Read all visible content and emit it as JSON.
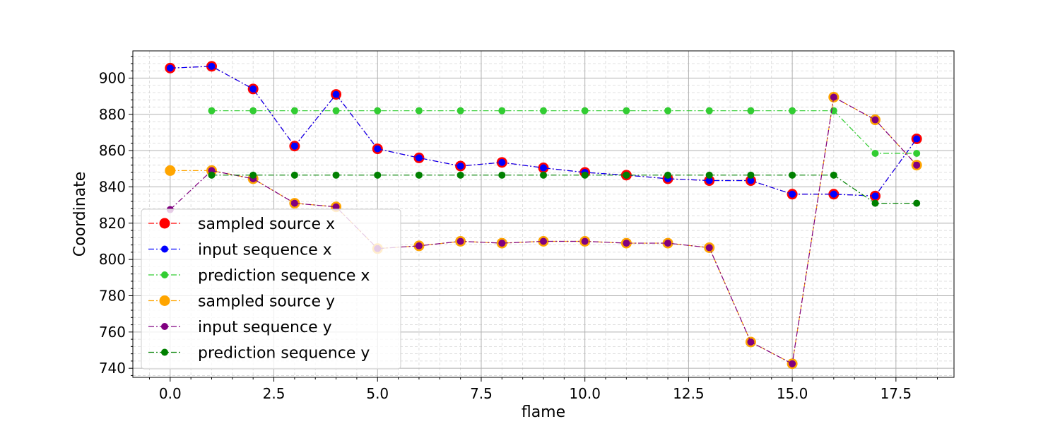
{
  "chart_data": {
    "type": "line",
    "title": "",
    "xlabel": "flame",
    "ylabel": "Coordinate",
    "xlim": [
      -0.9,
      18.9
    ],
    "ylim": [
      735,
      915
    ],
    "xticks": [
      0.0,
      2.5,
      5.0,
      7.5,
      10.0,
      12.5,
      15.0,
      17.5
    ],
    "xtick_labels": [
      "0.0",
      "2.5",
      "5.0",
      "7.5",
      "10.0",
      "12.5",
      "15.0",
      "17.5"
    ],
    "yticks": [
      740,
      760,
      780,
      800,
      820,
      840,
      860,
      880,
      900
    ],
    "ytick_labels": [
      "740",
      "760",
      "780",
      "800",
      "820",
      "840",
      "860",
      "880",
      "900"
    ],
    "grid": true,
    "minor_grid": true,
    "legend_position": "lower-left",
    "series": [
      {
        "name": "sampled source x",
        "color": "#ff0000",
        "marker_size": "large",
        "x": [
          0,
          1,
          2,
          3,
          4,
          5,
          6,
          7,
          8,
          9,
          10,
          11,
          12,
          13,
          14,
          15,
          16,
          17,
          18
        ],
        "y": [
          905.5,
          906.5,
          894,
          862.5,
          891,
          861,
          856,
          851.5,
          853.5,
          850.5,
          848,
          846.5,
          844.5,
          843.5,
          843.5,
          836,
          836,
          835,
          866.5
        ]
      },
      {
        "name": "input sequence x",
        "color": "#0000ff",
        "marker_size": "small",
        "x": [
          0,
          1,
          2,
          3,
          4,
          5,
          6,
          7,
          8,
          9,
          10,
          11,
          12,
          13,
          14,
          15,
          16,
          17,
          18
        ],
        "y": [
          905.5,
          906.5,
          894,
          862.5,
          891,
          861,
          856,
          851.5,
          853.5,
          850.5,
          848,
          846.5,
          844.5,
          843.5,
          843.5,
          836,
          836,
          835,
          866.5
        ]
      },
      {
        "name": "prediction sequence x",
        "color": "#32cd32",
        "marker_size": "small",
        "x": [
          1,
          2,
          3,
          4,
          5,
          6,
          7,
          8,
          9,
          10,
          11,
          12,
          13,
          14,
          15,
          16,
          17,
          18
        ],
        "y": [
          882,
          882,
          882,
          882,
          882,
          882,
          882,
          882,
          882,
          882,
          882,
          882,
          882,
          882,
          882,
          882,
          858.5,
          858.5
        ]
      },
      {
        "name": "sampled source y",
        "color": "#ffa500",
        "marker_size": "large",
        "x": [
          0,
          1,
          2,
          3,
          4,
          5,
          6,
          7,
          8,
          9,
          10,
          11,
          12,
          13,
          14,
          15,
          16,
          17,
          18
        ],
        "y": [
          849,
          849,
          844.5,
          831,
          829,
          806,
          807.5,
          810,
          809,
          810,
          810,
          809,
          809,
          806.5,
          754.5,
          742.5,
          889.5,
          877,
          852
        ]
      },
      {
        "name": "input sequence y",
        "color": "#800080",
        "marker_size": "small",
        "x": [
          0,
          1,
          2,
          3,
          4,
          5,
          6,
          7,
          8,
          9,
          10,
          11,
          12,
          13,
          14,
          15,
          16,
          17,
          18
        ],
        "y": [
          827.5,
          849,
          844.5,
          831,
          829,
          806,
          807.5,
          810,
          809,
          810,
          810,
          809,
          809,
          806.5,
          754.5,
          742.5,
          889.5,
          877,
          852
        ]
      },
      {
        "name": "prediction sequence y",
        "color": "#008000",
        "marker_size": "small",
        "x": [
          1,
          2,
          3,
          4,
          5,
          6,
          7,
          8,
          9,
          10,
          11,
          12,
          13,
          14,
          15,
          16,
          17,
          18
        ],
        "y": [
          846.5,
          846.5,
          846.5,
          846.5,
          846.5,
          846.5,
          846.5,
          846.5,
          846.5,
          846.5,
          846.5,
          846.5,
          846.5,
          846.5,
          846.5,
          846.5,
          831,
          831
        ]
      }
    ]
  }
}
